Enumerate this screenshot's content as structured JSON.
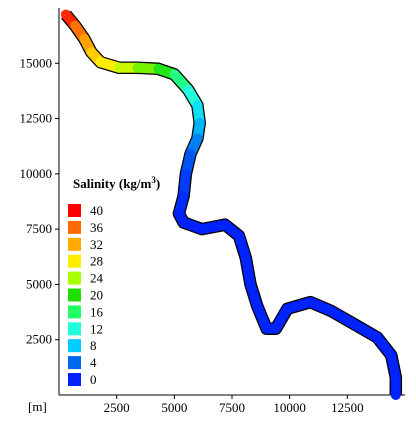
{
  "chart_data": {
    "type": "heatmap",
    "title": "",
    "x_unit_label": "[m]",
    "xlim": [
      0,
      15000
    ],
    "ylim": [
      0,
      17500
    ],
    "x_ticks": [
      2500,
      5000,
      7500,
      10000,
      12500
    ],
    "y_ticks": [
      2500,
      5000,
      7500,
      10000,
      12500,
      15000
    ],
    "legend": {
      "title_prefix": "Salinity (kg/m",
      "title_sup": "3",
      "title_suffix": ")",
      "placement": "left-middle",
      "entries": [
        {
          "label": "40",
          "color": "#ff0000"
        },
        {
          "label": "36",
          "color": "#ff6a00"
        },
        {
          "label": "32",
          "color": "#ffaa00"
        },
        {
          "label": "28",
          "color": "#ffee00"
        },
        {
          "label": "24",
          "color": "#aaff00"
        },
        {
          "label": "20",
          "color": "#22dd00"
        },
        {
          "label": "16",
          "color": "#22ff66"
        },
        {
          "label": "12",
          "color": "#22ffdd"
        },
        {
          "label": "8",
          "color": "#00ccff"
        },
        {
          "label": "4",
          "color": "#0066ee"
        },
        {
          "label": "0",
          "color": "#0022ff"
        }
      ]
    },
    "channel": {
      "centerline": [
        {
          "x": 300,
          "y": 17200,
          "s": 40
        },
        {
          "x": 700,
          "y": 16700,
          "s": 37
        },
        {
          "x": 1100,
          "y": 16100,
          "s": 34
        },
        {
          "x": 1400,
          "y": 15500,
          "s": 31
        },
        {
          "x": 1800,
          "y": 15050,
          "s": 29
        },
        {
          "x": 2600,
          "y": 14800,
          "s": 27
        },
        {
          "x": 3400,
          "y": 14800,
          "s": 24
        },
        {
          "x": 4300,
          "y": 14750,
          "s": 21
        },
        {
          "x": 5000,
          "y": 14500,
          "s": 17
        },
        {
          "x": 5600,
          "y": 13800,
          "s": 13
        },
        {
          "x": 6000,
          "y": 13100,
          "s": 11
        },
        {
          "x": 6100,
          "y": 12300,
          "s": 8
        },
        {
          "x": 6000,
          "y": 11600,
          "s": 6
        },
        {
          "x": 5700,
          "y": 10900,
          "s": 4
        },
        {
          "x": 5500,
          "y": 10000,
          "s": 2
        },
        {
          "x": 5400,
          "y": 9000,
          "s": 1
        },
        {
          "x": 5200,
          "y": 8200,
          "s": 0
        },
        {
          "x": 5400,
          "y": 7800,
          "s": 0
        },
        {
          "x": 6200,
          "y": 7500,
          "s": 0
        },
        {
          "x": 7200,
          "y": 7700,
          "s": 0
        },
        {
          "x": 7800,
          "y": 7200,
          "s": 0
        },
        {
          "x": 8100,
          "y": 6200,
          "s": 0
        },
        {
          "x": 8300,
          "y": 5000,
          "s": 0
        },
        {
          "x": 8600,
          "y": 4000,
          "s": 0
        },
        {
          "x": 9000,
          "y": 3000,
          "s": 0
        },
        {
          "x": 9400,
          "y": 3000,
          "s": 0
        },
        {
          "x": 9900,
          "y": 3900,
          "s": 0
        },
        {
          "x": 10900,
          "y": 4200,
          "s": 0
        },
        {
          "x": 11800,
          "y": 3800,
          "s": 0
        },
        {
          "x": 12800,
          "y": 3200,
          "s": 0
        },
        {
          "x": 13800,
          "y": 2600,
          "s": 0
        },
        {
          "x": 14400,
          "y": 1800,
          "s": 0
        },
        {
          "x": 14600,
          "y": 800,
          "s": 0
        },
        {
          "x": 14600,
          "y": 0,
          "s": 0
        }
      ]
    }
  }
}
